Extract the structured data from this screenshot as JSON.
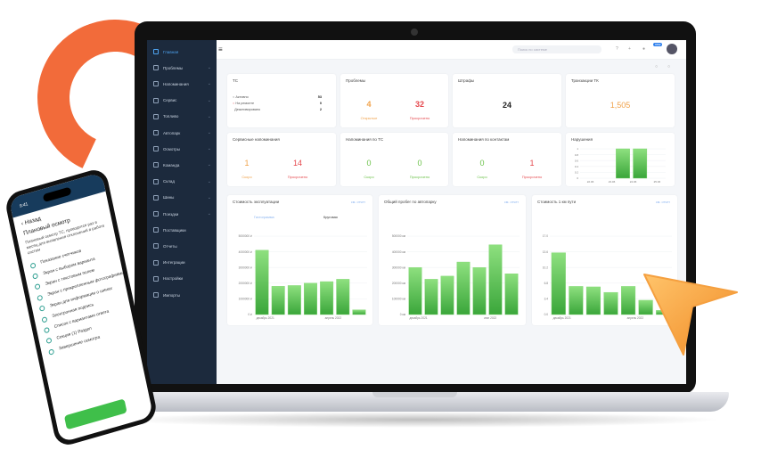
{
  "colors": {
    "accent": "#4ea3f0",
    "sidebar": "#1c2a3d",
    "bars": "#55c24f",
    "orange": "#f0a24a",
    "red": "#e5484d",
    "green": "#6cc24a",
    "decor": "#f26b3a"
  },
  "sidebar": {
    "items": [
      {
        "label": "Главная",
        "icon": "home-icon",
        "active": true
      },
      {
        "label": "Проблемы",
        "icon": "problem-icon",
        "chevron": true
      },
      {
        "label": "Напоминания",
        "icon": "bell-icon",
        "chevron": true
      },
      {
        "label": "Сервис",
        "icon": "service-icon",
        "chevron": true
      },
      {
        "label": "Топливо",
        "icon": "fuel-icon",
        "chevron": true
      },
      {
        "label": "Автопарк",
        "icon": "truck-icon",
        "chevron": true
      },
      {
        "label": "Осмотры",
        "icon": "inspection-icon",
        "chevron": true
      },
      {
        "label": "Команда",
        "icon": "team-icon",
        "chevron": true
      },
      {
        "label": "Склад",
        "icon": "warehouse-icon",
        "chevron": true
      },
      {
        "label": "Шины",
        "icon": "tire-icon",
        "chevron": true
      },
      {
        "label": "Поездки",
        "icon": "trips-icon",
        "chevron": true
      },
      {
        "label": "Поставщики",
        "icon": "suppliers-icon"
      },
      {
        "label": "Отчеты",
        "icon": "reports-icon"
      },
      {
        "label": "Интеграции",
        "icon": "integrations-icon"
      },
      {
        "label": "Настройки",
        "icon": "gear-icon"
      },
      {
        "label": "Импорты",
        "icon": "upload-icon"
      }
    ]
  },
  "topbar": {
    "search_placeholder": "Поиск по системе",
    "badge": "new"
  },
  "cards": {
    "vehicles": {
      "title": "ТС",
      "rows": [
        {
          "label": "Активно",
          "value": "53"
        },
        {
          "label": "На ремонте",
          "value": "0"
        },
        {
          "label": "Деактивировано",
          "value": "2"
        }
      ]
    },
    "problems": {
      "title": "Проблемы",
      "open": "4",
      "open_label": "Открытые",
      "overdue": "32",
      "overdue_label": "Просрочено"
    },
    "fines": {
      "title": "Штрафы",
      "value": "24"
    },
    "fuel_tx": {
      "title": "Транзакции ТК",
      "value": "1,505"
    },
    "service_rem": {
      "title": "Сервисные напоминания",
      "soon": "1",
      "soon_label": "Скоро",
      "overdue": "14",
      "overdue_label": "Просрочено"
    },
    "vehicle_rem": {
      "title": "Напоминания по ТС",
      "soon": "0",
      "soon_label": "Скоро",
      "overdue": "0",
      "overdue_label": "Просрочено"
    },
    "contact_rem": {
      "title": "Напоминания по контактам",
      "soon": "0",
      "soon_label": "Скоро",
      "overdue": "1",
      "overdue_label": "Просрочено"
    },
    "violations": {
      "title": "Нарушения"
    }
  },
  "chart_data": [
    {
      "type": "bar",
      "title": "Нарушения",
      "categories": [
        "22.06",
        "23.06",
        "24.06",
        "",
        "25.06"
      ],
      "values": [
        0,
        0,
        1,
        1,
        0
      ],
      "yticks": [
        "0",
        "0.2",
        "0.4",
        "0.6",
        "0.8",
        "1"
      ],
      "ylim": [
        0,
        1
      ],
      "xticklabels": [
        "22.06",
        "23.06",
        "24.06",
        "25.06"
      ],
      "grid": true
    },
    {
      "type": "bar",
      "title": "Стоимость эксплуатации",
      "link": "см. отчет",
      "tabs": [
        "Гистограмма",
        "Круговая"
      ],
      "values": [
        4100000,
        1800000,
        1850000,
        2000000,
        2100000,
        2250000,
        300000
      ],
      "ylim": [
        0,
        5000000
      ],
      "yticks": [
        "0 ₽",
        "1000000 ₽",
        "2000000 ₽",
        "3000000 ₽",
        "4000000 ₽",
        "5000000 ₽"
      ],
      "xticklabels": [
        "декабрь 2021",
        "апрель 2022"
      ],
      "grid": true
    },
    {
      "type": "bar",
      "title": "Общий пробег по автопарку",
      "link": "см. отчет",
      "values": [
        300000,
        225000,
        245000,
        335000,
        300000,
        445000,
        260000
      ],
      "ylim": [
        0,
        500000
      ],
      "yticks": [
        "0 км",
        "100000 км",
        "200000 км",
        "300000 км",
        "400000 км",
        "500000 км"
      ],
      "xticklabels": [
        "декабрь 2021",
        "июн 2022"
      ],
      "grid": true
    },
    {
      "type": "bar",
      "title": "Стоимость 1 км пути",
      "link": "см. отчет",
      "values": [
        13.4,
        6.1,
        6.0,
        4.8,
        6.1,
        3.1,
        0.9
      ],
      "ylim": [
        0,
        17
      ],
      "yticks": [
        "0.0",
        "3.4",
        "6.8",
        "10.2",
        "13.6",
        "17.0"
      ],
      "xticklabels": [
        "декабрь 2021",
        "апрель 2022"
      ],
      "grid": true
    }
  ],
  "phone": {
    "time": "9:41",
    "back": "Назад",
    "title": "Плановый осмотр",
    "description": "Плановый осмотр ТС, проводится раз в месяц для выявления отклонений в работе систем",
    "items": [
      "Показание счетчиков",
      "Экран с выбором варианта",
      "Экран с текстовым полем",
      "Экран с прикрепленным фотографиями",
      "Экран для информации о шинах",
      "Электронная подпись",
      "Список с вариантами ответа",
      "Секция (1) Раздел",
      "Завершение осмотра"
    ]
  }
}
